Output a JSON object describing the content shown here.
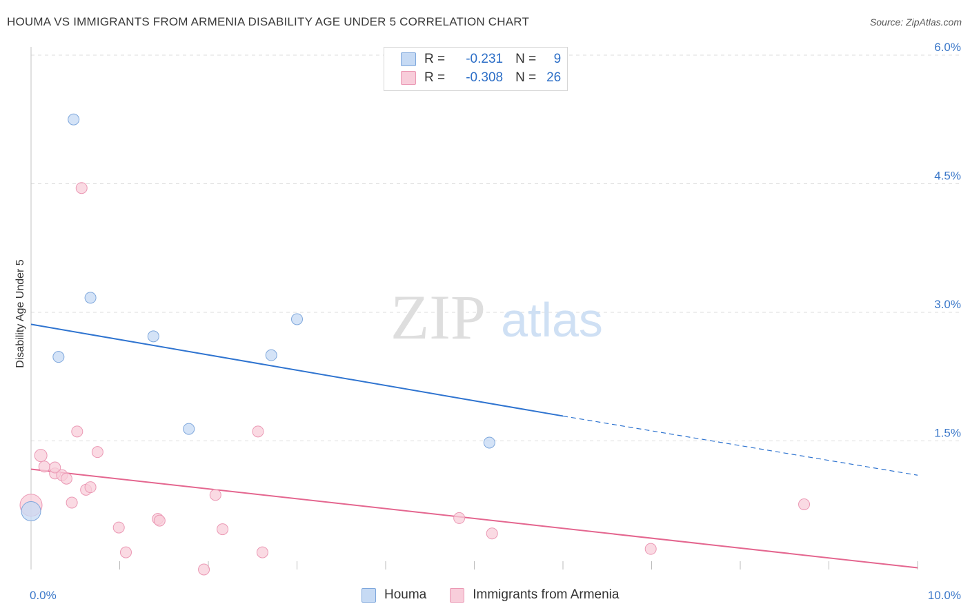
{
  "header": {
    "title": "HOUMA VS IMMIGRANTS FROM ARMENIA DISABILITY AGE UNDER 5 CORRELATION CHART",
    "source": "Source: ZipAtlas.com"
  },
  "watermark": {
    "zip": "ZIP",
    "atlas": "atlas"
  },
  "legend": {
    "rows": [
      {
        "r_label": "R =",
        "r_value": "-0.231",
        "n_label": "N =",
        "n_value": "9",
        "color": "#a9c8f0",
        "border": "#7aa5dd"
      },
      {
        "r_label": "R =",
        "r_value": "-0.308",
        "n_label": "N =",
        "n_value": "26",
        "color": "#f6c3d3",
        "border": "#e98aa8"
      }
    ]
  },
  "bottom_legend": {
    "series1": "Houma",
    "series2": "Immigrants from Armenia"
  },
  "colors": {
    "houma_fill": "#c6daf4",
    "houma_stroke": "#7ea7dc",
    "houma_line": "#2f74d0",
    "armenia_fill": "#f8cdda",
    "armenia_stroke": "#eb98b4",
    "armenia_line": "#e4668f",
    "grid": "#dcdcdc",
    "tick_text": "#3b78c9"
  },
  "chart_data": {
    "type": "scatter",
    "xlabel": "",
    "ylabel": "Disability Age Under 5",
    "xlim": [
      0,
      10
    ],
    "ylim": [
      0,
      6.0
    ],
    "x_ticks": [
      "0.0%",
      "10.0%"
    ],
    "y_ticks": [
      {
        "value": 1.5,
        "label": "1.5%"
      },
      {
        "value": 3.0,
        "label": "3.0%"
      },
      {
        "value": 4.5,
        "label": "4.5%"
      },
      {
        "value": 6.0,
        "label": "6.0%"
      }
    ],
    "grid": true,
    "legend_position": "top-center",
    "series": [
      {
        "name": "Houma",
        "points": [
          {
            "x": 0.0,
            "y": 0.68,
            "size": 14
          },
          {
            "x": 0.48,
            "y": 5.25,
            "size": 8
          },
          {
            "x": 0.67,
            "y": 3.17,
            "size": 8
          },
          {
            "x": 0.31,
            "y": 2.48,
            "size": 8
          },
          {
            "x": 1.38,
            "y": 2.72,
            "size": 8
          },
          {
            "x": 3.0,
            "y": 2.92,
            "size": 8
          },
          {
            "x": 2.71,
            "y": 2.5,
            "size": 8
          },
          {
            "x": 1.78,
            "y": 1.64,
            "size": 8
          },
          {
            "x": 5.17,
            "y": 1.48,
            "size": 8
          }
        ],
        "trend": {
          "x0": 0.0,
          "y0": 2.86,
          "x1": 6.0,
          "y1": 1.79,
          "x_ext": 10.0,
          "y_ext": 1.1
        }
      },
      {
        "name": "Immigrants from Armenia",
        "points": [
          {
            "x": 0.0,
            "y": 0.75,
            "size": 16
          },
          {
            "x": 0.57,
            "y": 4.45,
            "size": 8
          },
          {
            "x": 0.52,
            "y": 1.61,
            "size": 8
          },
          {
            "x": 0.11,
            "y": 1.33,
            "size": 9
          },
          {
            "x": 0.15,
            "y": 1.2,
            "size": 8
          },
          {
            "x": 0.27,
            "y": 1.12,
            "size": 8
          },
          {
            "x": 0.27,
            "y": 1.19,
            "size": 8
          },
          {
            "x": 0.35,
            "y": 1.1,
            "size": 8
          },
          {
            "x": 0.4,
            "y": 1.06,
            "size": 8
          },
          {
            "x": 0.46,
            "y": 0.78,
            "size": 8
          },
          {
            "x": 0.62,
            "y": 0.93,
            "size": 8
          },
          {
            "x": 0.67,
            "y": 0.96,
            "size": 8
          },
          {
            "x": 0.75,
            "y": 1.37,
            "size": 8
          },
          {
            "x": 0.99,
            "y": 0.49,
            "size": 8
          },
          {
            "x": 1.07,
            "y": 0.2,
            "size": 8
          },
          {
            "x": 1.43,
            "y": 0.59,
            "size": 8
          },
          {
            "x": 1.45,
            "y": 0.57,
            "size": 8
          },
          {
            "x": 1.95,
            "y": 0.0,
            "size": 8
          },
          {
            "x": 2.08,
            "y": 0.87,
            "size": 8
          },
          {
            "x": 2.16,
            "y": 0.47,
            "size": 8
          },
          {
            "x": 2.56,
            "y": 1.61,
            "size": 8
          },
          {
            "x": 2.61,
            "y": 0.2,
            "size": 8
          },
          {
            "x": 4.83,
            "y": 0.6,
            "size": 8
          },
          {
            "x": 5.2,
            "y": 0.42,
            "size": 8
          },
          {
            "x": 6.99,
            "y": 0.24,
            "size": 8
          },
          {
            "x": 8.72,
            "y": 0.76,
            "size": 8
          }
        ],
        "trend": {
          "x0": 0.0,
          "y0": 1.17,
          "x1": 10.0,
          "y1": 0.02
        }
      }
    ]
  }
}
